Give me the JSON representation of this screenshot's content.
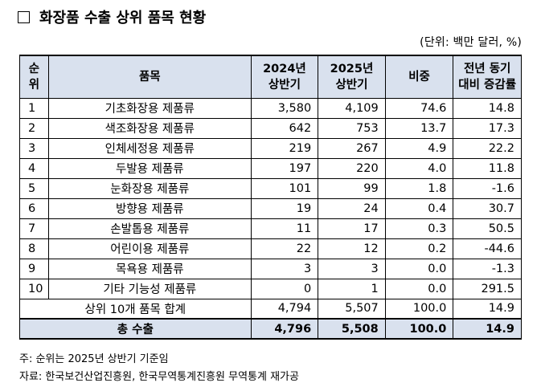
{
  "title": "화장품 수출 상위 품목 현황",
  "unit": "(단위: 백만 달러, %)",
  "headers": {
    "rank": "순위",
    "item": "품목",
    "h2024": "2024년 상반기",
    "h2025": "2025년 상반기",
    "share": "비중",
    "yoy": "전년 동기 대비 증감률"
  },
  "rows": [
    {
      "rank": "1",
      "item": "기초화장용 제품류",
      "v2024": "3,580",
      "v2025": "4,109",
      "share": "74.6",
      "yoy": "14.8"
    },
    {
      "rank": "2",
      "item": "색조화장용 제품류",
      "v2024": "642",
      "v2025": "753",
      "share": "13.7",
      "yoy": "17.3"
    },
    {
      "rank": "3",
      "item": "인체세정용 제품류",
      "v2024": "219",
      "v2025": "267",
      "share": "4.9",
      "yoy": "22.2"
    },
    {
      "rank": "4",
      "item": "두발용 제품류",
      "v2024": "197",
      "v2025": "220",
      "share": "4.0",
      "yoy": "11.8"
    },
    {
      "rank": "5",
      "item": "눈화장용 제품류",
      "v2024": "101",
      "v2025": "99",
      "share": "1.8",
      "yoy": "-1.6"
    },
    {
      "rank": "6",
      "item": "방향용 제품류",
      "v2024": "19",
      "v2025": "24",
      "share": "0.4",
      "yoy": "30.7"
    },
    {
      "rank": "7",
      "item": "손발톱용 제품류",
      "v2024": "11",
      "v2025": "17",
      "share": "0.3",
      "yoy": "50.5"
    },
    {
      "rank": "8",
      "item": "어린이용 제품류",
      "v2024": "22",
      "v2025": "12",
      "share": "0.2",
      "yoy": "-44.6"
    },
    {
      "rank": "9",
      "item": "목욕용 제품류",
      "v2024": "3",
      "v2025": "3",
      "share": "0.0",
      "yoy": "-1.3"
    },
    {
      "rank": "10",
      "item": "기타 기능성 제품류",
      "v2024": "0",
      "v2025": "1",
      "share": "0.0",
      "yoy": "291.5"
    }
  ],
  "subtotal": {
    "label": "상위 10개 품목 합계",
    "v2024": "4,794",
    "v2025": "5,507",
    "share": "100.0",
    "yoy": "14.9"
  },
  "total": {
    "label": "총 수출",
    "v2024": "4,796",
    "v2025": "5,508",
    "share": "100.0",
    "yoy": "14.9"
  },
  "notes": [
    "주: 순위는 2025년 상반기 기준임",
    "자료: 한국보건산업진흥원, 한국무역통계진흥원 무역통계 재가공"
  ]
}
